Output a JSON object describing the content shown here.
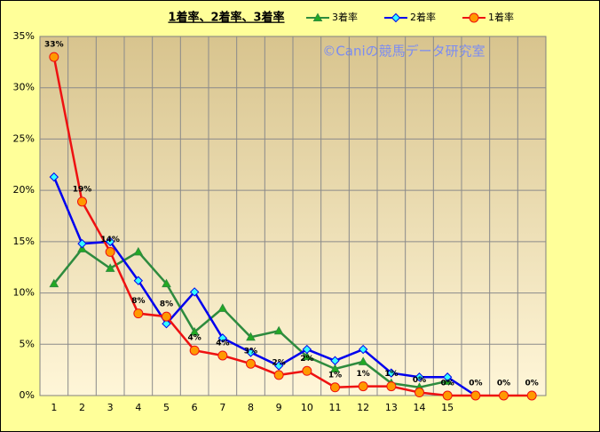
{
  "chart_data": {
    "type": "line",
    "title": "1着率、2着率、3着率",
    "watermark": "©Caniの競馬データ研究室",
    "categories": [
      "1",
      "2",
      "3",
      "4",
      "5",
      "6",
      "7",
      "8",
      "9",
      "10",
      "11",
      "12",
      "13",
      "14",
      "15",
      null,
      null,
      null
    ],
    "series": [
      {
        "name": "3着率",
        "color": "#2e8b3e",
        "marker": "triangle",
        "marker_fill": "#22aa22",
        "values": [
          10.9,
          14.3,
          12.4,
          14.0,
          10.9,
          6.2,
          8.5,
          5.7,
          6.3,
          3.8,
          2.6,
          3.3,
          1.2,
          0.8,
          1.4,
          null,
          null,
          null
        ]
      },
      {
        "name": "2着率",
        "color": "#0000ee",
        "marker": "diamond",
        "marker_fill": "#33ffff",
        "values": [
          21.3,
          14.8,
          15.0,
          11.2,
          7.0,
          10.1,
          5.6,
          4.2,
          2.9,
          4.5,
          3.4,
          4.5,
          2.2,
          1.8,
          1.8,
          0,
          null,
          null
        ]
      },
      {
        "name": "1着率",
        "color": "#ee1111",
        "marker": "circle",
        "marker_fill": "#ff9900",
        "values": [
          33.0,
          18.9,
          14.0,
          8.0,
          7.7,
          4.4,
          3.9,
          3.1,
          2.0,
          2.4,
          0.8,
          0.9,
          0.9,
          0.3,
          0,
          0,
          0,
          0
        ],
        "value_labels": [
          "33%",
          "19%",
          "14%",
          "8%",
          "8%",
          "4%",
          "4%",
          "3%",
          "2%",
          "2%",
          "1%",
          "1%",
          "1%",
          "0%",
          "0%",
          "0%",
          "0%",
          "0%"
        ]
      }
    ],
    "ylim": [
      0,
      35
    ],
    "yticks": [
      {
        "value": 0,
        "label": "0%"
      },
      {
        "value": 5,
        "label": "5%"
      },
      {
        "value": 10,
        "label": "10%"
      },
      {
        "value": 15,
        "label": "15%"
      },
      {
        "value": 20,
        "label": "20%"
      },
      {
        "value": 25,
        "label": "25%"
      },
      {
        "value": 30,
        "label": "30%"
      },
      {
        "value": 35,
        "label": "35%"
      }
    ],
    "grid": true
  }
}
